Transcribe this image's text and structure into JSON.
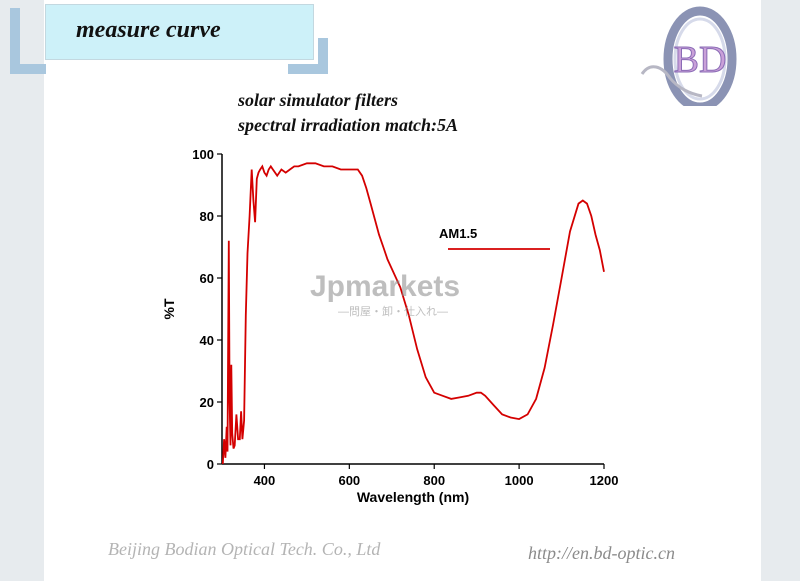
{
  "header": {
    "title": "measure curve"
  },
  "logo": {
    "text": "BD"
  },
  "chart_titles": [
    "solar simulator filters",
    "spectral irradiation match:5A"
  ],
  "footer": {
    "company": "Beijing Bodian Optical Tech. Co., Ltd",
    "url": "http://en.bd-optic.cn"
  },
  "watermark": {
    "brand": "Jpmarkets",
    "tagline": "—問屋・卸・仕入れ—"
  },
  "colors": {
    "curve": "#d40000",
    "title_bg": "#cdf1f9",
    "bracket": "#a9c7de"
  },
  "chart_data": {
    "type": "line",
    "xlabel": "Wavelength (nm)",
    "ylabel": "%T",
    "xlim": [
      300,
      1200
    ],
    "ylim": [
      0,
      100
    ],
    "x_ticks": [
      400,
      600,
      800,
      1000,
      1200
    ],
    "y_ticks": [
      0,
      20,
      40,
      60,
      80,
      100
    ],
    "grid": false,
    "legend": {
      "label": "AM1.5",
      "position": "top-right"
    },
    "series": [
      {
        "name": "AM1.5",
        "x": [
          302,
          305,
          308,
          311,
          313,
          316,
          318,
          320,
          322,
          324,
          327,
          330,
          334,
          338,
          342,
          345,
          348,
          352,
          356,
          360,
          365,
          370,
          374,
          378,
          382,
          386,
          390,
          395,
          400,
          405,
          410,
          415,
          420,
          430,
          440,
          450,
          460,
          470,
          480,
          500,
          520,
          540,
          560,
          580,
          600,
          620,
          630,
          640,
          650,
          660,
          670,
          680,
          690,
          700,
          720,
          740,
          760,
          780,
          800,
          820,
          840,
          860,
          880,
          900,
          910,
          920,
          940,
          960,
          980,
          1000,
          1020,
          1040,
          1060,
          1080,
          1100,
          1120,
          1140,
          1150,
          1160,
          1170,
          1180,
          1190,
          1200
        ],
        "y": [
          0,
          8,
          2,
          12,
          4,
          72,
          20,
          6,
          32,
          10,
          5,
          6,
          16,
          8,
          8,
          17,
          8,
          14,
          48,
          68,
          80,
          95,
          85,
          78,
          92,
          94,
          95,
          96,
          94,
          93,
          95,
          96,
          95,
          93,
          95,
          94,
          95,
          96,
          96,
          97,
          97,
          96,
          96,
          95,
          95,
          95,
          93,
          89,
          84,
          79,
          74,
          70,
          66,
          63,
          57,
          48,
          37,
          28,
          23,
          22,
          21,
          21.5,
          22,
          23,
          23,
          22,
          19,
          16,
          15,
          14.5,
          16,
          21,
          31,
          45,
          60,
          75,
          84,
          85,
          84,
          80,
          74,
          69,
          62
        ]
      }
    ]
  }
}
